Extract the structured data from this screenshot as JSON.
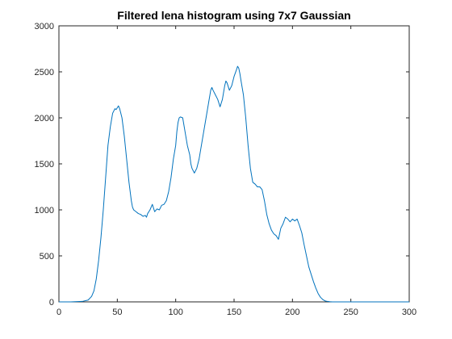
{
  "chart_data": {
    "type": "line",
    "title": "Filtered lena histogram using 7x7 Gaussian",
    "xlabel": "",
    "ylabel": "",
    "xlim": [
      0,
      300
    ],
    "ylim": [
      0,
      3000
    ],
    "x_ticks": [
      "0",
      "50",
      "100",
      "150",
      "200",
      "250",
      "300"
    ],
    "y_ticks": [
      "0",
      "500",
      "1000",
      "1500",
      "2000",
      "2500",
      "3000"
    ],
    "grid": false,
    "line_color": "#0072bd",
    "series": [
      {
        "x": [
          0,
          10,
          20,
          25,
          28,
          30,
          32,
          34,
          36,
          38,
          40,
          42,
          44,
          46,
          48,
          49,
          50,
          51,
          52,
          53,
          54,
          56,
          58,
          60,
          62,
          63,
          64,
          66,
          68,
          70,
          72,
          74,
          75,
          76,
          78,
          80,
          82,
          84,
          86,
          88,
          90,
          92,
          94,
          96,
          98,
          100,
          101,
          102,
          103,
          104,
          106,
          108,
          110,
          112,
          113,
          114,
          116,
          118,
          120,
          122,
          124,
          126,
          128,
          130,
          131,
          132,
          134,
          136,
          138,
          140,
          142,
          143,
          144,
          146,
          148,
          150,
          152,
          153,
          154,
          155,
          156,
          158,
          160,
          162,
          164,
          166,
          168,
          170,
          172,
          174,
          176,
          178,
          180,
          182,
          184,
          186,
          188,
          190,
          192,
          194,
          196,
          198,
          200,
          202,
          204,
          206,
          208,
          210,
          212,
          214,
          216,
          218,
          220,
          222,
          224,
          226,
          228,
          230,
          232,
          234,
          236,
          240,
          250,
          260,
          280,
          300
        ],
        "y": [
          0,
          0,
          5,
          20,
          60,
          120,
          250,
          450,
          700,
          1000,
          1350,
          1700,
          1900,
          2050,
          2100,
          2090,
          2110,
          2130,
          2100,
          2050,
          2000,
          1800,
          1550,
          1300,
          1100,
          1030,
          1000,
          980,
          960,
          950,
          930,
          940,
          920,
          960,
          1000,
          1060,
          980,
          1010,
          1000,
          1050,
          1060,
          1100,
          1200,
          1350,
          1550,
          1700,
          1850,
          1950,
          2000,
          2010,
          2000,
          1850,
          1700,
          1600,
          1500,
          1450,
          1400,
          1450,
          1550,
          1700,
          1850,
          2000,
          2150,
          2300,
          2330,
          2300,
          2250,
          2200,
          2120,
          2200,
          2350,
          2400,
          2380,
          2300,
          2350,
          2450,
          2520,
          2560,
          2540,
          2480,
          2400,
          2250,
          2000,
          1700,
          1450,
          1300,
          1280,
          1250,
          1250,
          1220,
          1100,
          950,
          850,
          780,
          740,
          720,
          680,
          800,
          850,
          920,
          900,
          870,
          900,
          880,
          900,
          830,
          750,
          620,
          500,
          380,
          300,
          220,
          150,
          90,
          50,
          25,
          10,
          5,
          2,
          0,
          0,
          0,
          0,
          0,
          0,
          0
        ]
      }
    ]
  }
}
